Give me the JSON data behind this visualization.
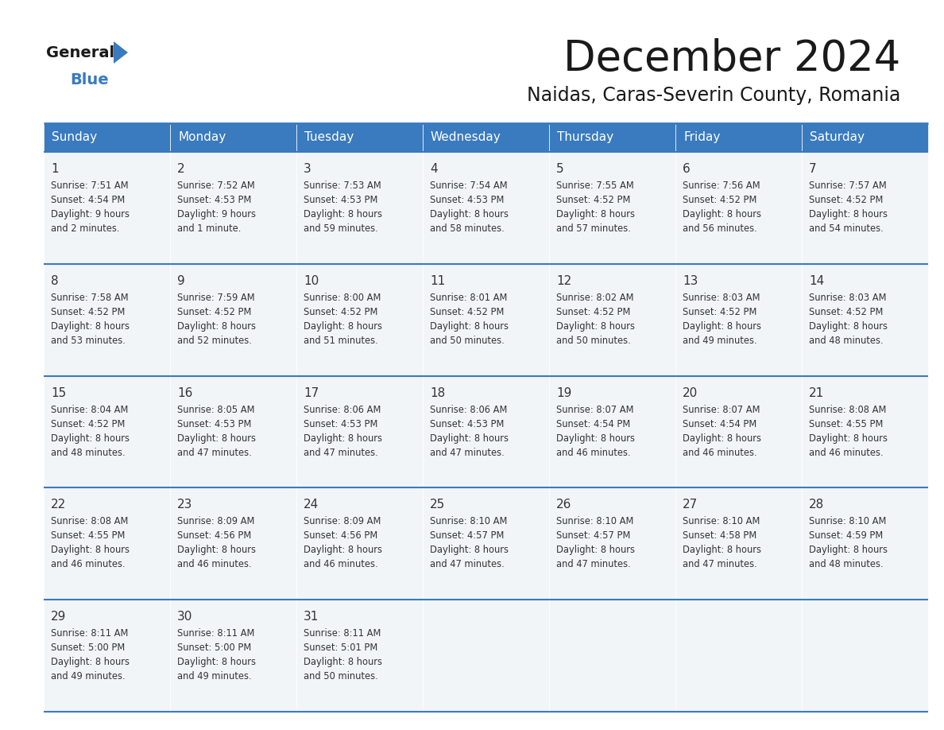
{
  "title": "December 2024",
  "subtitle": "Naidas, Caras-Severin County, Romania",
  "header_bg": "#3a7abf",
  "header_text": "#ffffff",
  "cell_bg": "#f2f5f8",
  "row_line_color": "#3a7abf",
  "text_color": "#333333",
  "days_of_week": [
    "Sunday",
    "Monday",
    "Tuesday",
    "Wednesday",
    "Thursday",
    "Friday",
    "Saturday"
  ],
  "logo_general_color": "#1a1a1a",
  "logo_blue_color": "#3a7abf",
  "logo_triangle_color": "#3a7abf",
  "calendar": [
    [
      {
        "day": 1,
        "sunrise": "7:51 AM",
        "sunset": "4:54 PM",
        "daylight_h": "9 hours",
        "daylight_m": "and 2 minutes."
      },
      {
        "day": 2,
        "sunrise": "7:52 AM",
        "sunset": "4:53 PM",
        "daylight_h": "9 hours",
        "daylight_m": "and 1 minute."
      },
      {
        "day": 3,
        "sunrise": "7:53 AM",
        "sunset": "4:53 PM",
        "daylight_h": "8 hours",
        "daylight_m": "and 59 minutes."
      },
      {
        "day": 4,
        "sunrise": "7:54 AM",
        "sunset": "4:53 PM",
        "daylight_h": "8 hours",
        "daylight_m": "and 58 minutes."
      },
      {
        "day": 5,
        "sunrise": "7:55 AM",
        "sunset": "4:52 PM",
        "daylight_h": "8 hours",
        "daylight_m": "and 57 minutes."
      },
      {
        "day": 6,
        "sunrise": "7:56 AM",
        "sunset": "4:52 PM",
        "daylight_h": "8 hours",
        "daylight_m": "and 56 minutes."
      },
      {
        "day": 7,
        "sunrise": "7:57 AM",
        "sunset": "4:52 PM",
        "daylight_h": "8 hours",
        "daylight_m": "and 54 minutes."
      }
    ],
    [
      {
        "day": 8,
        "sunrise": "7:58 AM",
        "sunset": "4:52 PM",
        "daylight_h": "8 hours",
        "daylight_m": "and 53 minutes."
      },
      {
        "day": 9,
        "sunrise": "7:59 AM",
        "sunset": "4:52 PM",
        "daylight_h": "8 hours",
        "daylight_m": "and 52 minutes."
      },
      {
        "day": 10,
        "sunrise": "8:00 AM",
        "sunset": "4:52 PM",
        "daylight_h": "8 hours",
        "daylight_m": "and 51 minutes."
      },
      {
        "day": 11,
        "sunrise": "8:01 AM",
        "sunset": "4:52 PM",
        "daylight_h": "8 hours",
        "daylight_m": "and 50 minutes."
      },
      {
        "day": 12,
        "sunrise": "8:02 AM",
        "sunset": "4:52 PM",
        "daylight_h": "8 hours",
        "daylight_m": "and 50 minutes."
      },
      {
        "day": 13,
        "sunrise": "8:03 AM",
        "sunset": "4:52 PM",
        "daylight_h": "8 hours",
        "daylight_m": "and 49 minutes."
      },
      {
        "day": 14,
        "sunrise": "8:03 AM",
        "sunset": "4:52 PM",
        "daylight_h": "8 hours",
        "daylight_m": "and 48 minutes."
      }
    ],
    [
      {
        "day": 15,
        "sunrise": "8:04 AM",
        "sunset": "4:52 PM",
        "daylight_h": "8 hours",
        "daylight_m": "and 48 minutes."
      },
      {
        "day": 16,
        "sunrise": "8:05 AM",
        "sunset": "4:53 PM",
        "daylight_h": "8 hours",
        "daylight_m": "and 47 minutes."
      },
      {
        "day": 17,
        "sunrise": "8:06 AM",
        "sunset": "4:53 PM",
        "daylight_h": "8 hours",
        "daylight_m": "and 47 minutes."
      },
      {
        "day": 18,
        "sunrise": "8:06 AM",
        "sunset": "4:53 PM",
        "daylight_h": "8 hours",
        "daylight_m": "and 47 minutes."
      },
      {
        "day": 19,
        "sunrise": "8:07 AM",
        "sunset": "4:54 PM",
        "daylight_h": "8 hours",
        "daylight_m": "and 46 minutes."
      },
      {
        "day": 20,
        "sunrise": "8:07 AM",
        "sunset": "4:54 PM",
        "daylight_h": "8 hours",
        "daylight_m": "and 46 minutes."
      },
      {
        "day": 21,
        "sunrise": "8:08 AM",
        "sunset": "4:55 PM",
        "daylight_h": "8 hours",
        "daylight_m": "and 46 minutes."
      }
    ],
    [
      {
        "day": 22,
        "sunrise": "8:08 AM",
        "sunset": "4:55 PM",
        "daylight_h": "8 hours",
        "daylight_m": "and 46 minutes."
      },
      {
        "day": 23,
        "sunrise": "8:09 AM",
        "sunset": "4:56 PM",
        "daylight_h": "8 hours",
        "daylight_m": "and 46 minutes."
      },
      {
        "day": 24,
        "sunrise": "8:09 AM",
        "sunset": "4:56 PM",
        "daylight_h": "8 hours",
        "daylight_m": "and 46 minutes."
      },
      {
        "day": 25,
        "sunrise": "8:10 AM",
        "sunset": "4:57 PM",
        "daylight_h": "8 hours",
        "daylight_m": "and 47 minutes."
      },
      {
        "day": 26,
        "sunrise": "8:10 AM",
        "sunset": "4:57 PM",
        "daylight_h": "8 hours",
        "daylight_m": "and 47 minutes."
      },
      {
        "day": 27,
        "sunrise": "8:10 AM",
        "sunset": "4:58 PM",
        "daylight_h": "8 hours",
        "daylight_m": "and 47 minutes."
      },
      {
        "day": 28,
        "sunrise": "8:10 AM",
        "sunset": "4:59 PM",
        "daylight_h": "8 hours",
        "daylight_m": "and 48 minutes."
      }
    ],
    [
      {
        "day": 29,
        "sunrise": "8:11 AM",
        "sunset": "5:00 PM",
        "daylight_h": "8 hours",
        "daylight_m": "and 49 minutes."
      },
      {
        "day": 30,
        "sunrise": "8:11 AM",
        "sunset": "5:00 PM",
        "daylight_h": "8 hours",
        "daylight_m": "and 49 minutes."
      },
      {
        "day": 31,
        "sunrise": "8:11 AM",
        "sunset": "5:01 PM",
        "daylight_h": "8 hours",
        "daylight_m": "and 50 minutes."
      },
      null,
      null,
      null,
      null
    ]
  ]
}
